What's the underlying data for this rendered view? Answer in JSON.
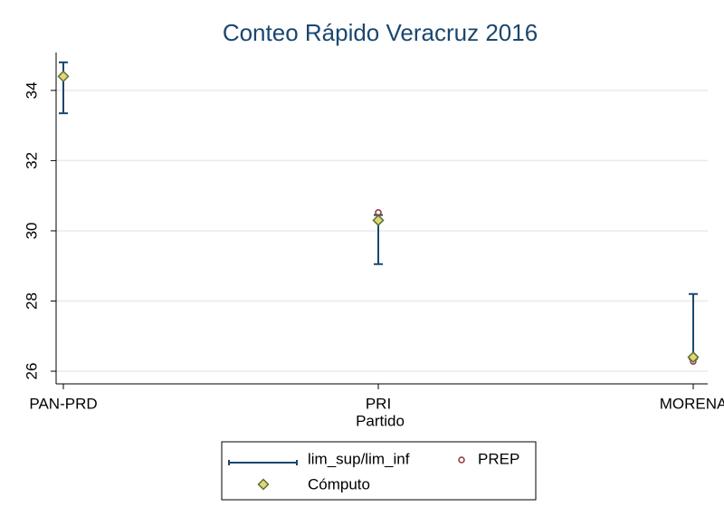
{
  "chart_data": {
    "type": "errorbar",
    "title": "Conteo Rápido Veracruz 2016",
    "x_label": "Partido",
    "categories": [
      "PAN-PRD",
      "PRI",
      "MORENA"
    ],
    "series": [
      {
        "name": "lim_sup/lim_inf",
        "color": "#1a476f",
        "upper": [
          34.8,
          30.45,
          28.2
        ],
        "lower": [
          33.35,
          29.05,
          26.35
        ]
      },
      {
        "name": "PREP",
        "color": "#90353b",
        "values": [
          34.4,
          30.52,
          26.28
        ]
      },
      {
        "name": "Cómputo",
        "color": "#55752f",
        "values": [
          34.4,
          30.3,
          26.4
        ]
      }
    ],
    "ylim": [
      25.64,
      35.08
    ],
    "yticks": [
      26,
      28,
      30,
      32,
      34
    ],
    "grid": true
  }
}
